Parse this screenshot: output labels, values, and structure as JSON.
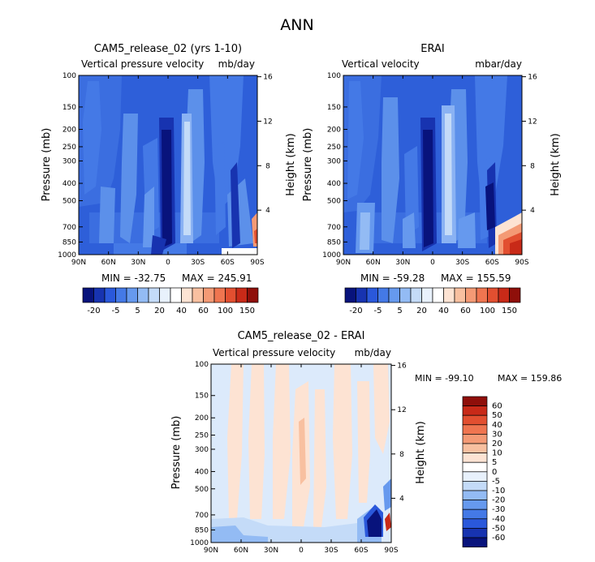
{
  "figure_title": "ANN",
  "colors": {
    "blues": [
      "#08137c",
      "#1733b0",
      "#2a58db",
      "#4479e6",
      "#6699ee",
      "#93bbf4",
      "#c4dbf8",
      "#e8f1fc"
    ],
    "whites": [
      "#ffffff"
    ],
    "reds": [
      "#fde3d3",
      "#f8c0a0",
      "#f49a75",
      "#ef7550",
      "#e24f30",
      "#c82a18",
      "#8f0f0a"
    ],
    "field_blue": "#2e5fd9"
  },
  "chart_data": [
    {
      "type": "heatmap",
      "id": "model",
      "title": "CAM5_release_02 (yrs 1-10)",
      "variable": "Vertical pressure velocity",
      "units": "mb/day",
      "ylabel": "Pressure (mb)",
      "ylabel_right": "Height (km)",
      "xticks": [
        "90N",
        "60N",
        "30N",
        "0",
        "30S",
        "60S",
        "90S"
      ],
      "xlim": [
        90,
        -90
      ],
      "pressure_ticks": [
        100,
        150,
        200,
        250,
        300,
        400,
        500,
        700,
        850,
        1000
      ],
      "height_ticks": [
        4,
        8,
        12,
        16
      ],
      "min_label": "MIN = -32.75",
      "max_label": "MAX = 245.91",
      "colorbar_labels": [
        "-20",
        "-5",
        "5",
        "20",
        "40",
        "60",
        "100",
        "150"
      ]
    },
    {
      "type": "heatmap",
      "id": "obs",
      "title": "ERAI",
      "variable": "Vertical velocity",
      "units": "mbar/day",
      "ylabel": "Pressure (mb)",
      "ylabel_right": "Height (km)",
      "xticks": [
        "90N",
        "60N",
        "30N",
        "0",
        "30S",
        "60S",
        "90S"
      ],
      "xlim": [
        90,
        -90
      ],
      "pressure_ticks": [
        100,
        150,
        200,
        250,
        300,
        400,
        500,
        700,
        850,
        1000
      ],
      "height_ticks": [
        4,
        8,
        12,
        16
      ],
      "min_label": "MIN = -59.28",
      "max_label": "MAX = 155.59",
      "colorbar_labels": [
        "-20",
        "-5",
        "5",
        "20",
        "40",
        "60",
        "100",
        "150"
      ]
    },
    {
      "type": "heatmap",
      "id": "diff",
      "title": "CAM5_release_02 - ERAI",
      "variable": "Vertical pressure velocity",
      "units": "mb/day",
      "ylabel": "Pressure (mb)",
      "ylabel_right": "Height (km)",
      "xticks": [
        "90N",
        "60N",
        "30N",
        "0",
        "30S",
        "60S",
        "90S"
      ],
      "xlim": [
        90,
        -90
      ],
      "pressure_ticks": [
        100,
        150,
        200,
        250,
        300,
        400,
        500,
        700,
        850,
        1000
      ],
      "height_ticks": [
        4,
        8,
        12,
        16
      ],
      "min_label": "MIN = -99.10",
      "max_label": "MAX = 159.86",
      "colorbar_labels": [
        "60",
        "50",
        "40",
        "30",
        "20",
        "10",
        "5",
        "0",
        "-5",
        "-10",
        "-20",
        "-30",
        "-40",
        "-50",
        "-60"
      ]
    }
  ]
}
